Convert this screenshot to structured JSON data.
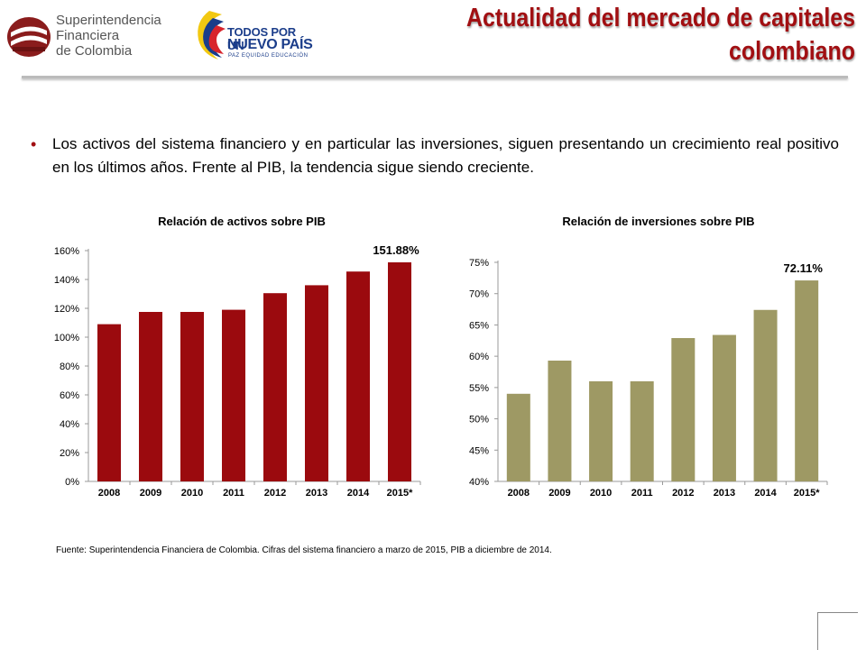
{
  "header": {
    "org_logo": {
      "lines": [
        "Superintendencia",
        "Financiera",
        "de Colombia"
      ],
      "icon": "sfc-logo-icon"
    },
    "gov_logo": {
      "line1": "TODOS POR UN",
      "line2": "NUEVO PAÍS",
      "line3": "PAZ  EQUIDAD  EDUCACIÓN",
      "icon": "colombia-flag-swirl-icon"
    },
    "title_line1": "Actualidad del mercado de capitales",
    "title_line2": "colombiano"
  },
  "body": {
    "paragraph": "Los activos del sistema financiero y en particular las inversiones, siguen presentando un crecimiento real  positivo en los últimos años. Frente al PIB, la tendencia sigue siendo creciente."
  },
  "colors": {
    "title": "#a10f12",
    "bar_assets": "#9b0a0e",
    "bar_investments": "#9e9964",
    "bullet": "#a10f12"
  },
  "chart_data": [
    {
      "type": "bar",
      "title": "Relación de activos sobre PIB",
      "categories": [
        "2008",
        "2009",
        "2010",
        "2011",
        "2012",
        "2013",
        "2014",
        "2015*"
      ],
      "values": [
        109,
        117.5,
        117.5,
        119,
        130.5,
        136,
        145.5,
        151.88
      ],
      "ylim": [
        0,
        160
      ],
      "yticks": [
        "0%",
        "20%",
        "40%",
        "60%",
        "80%",
        "100%",
        "120%",
        "140%",
        "160%"
      ],
      "data_label": {
        "index": 7,
        "text": "151.88%"
      },
      "grid": false,
      "legend": "none"
    },
    {
      "type": "bar",
      "title": "Relación de inversiones sobre PIB",
      "categories": [
        "2008",
        "2009",
        "2010",
        "2011",
        "2012",
        "2013",
        "2014",
        "2015*"
      ],
      "values": [
        54,
        59.3,
        56,
        56,
        62.9,
        63.4,
        67.4,
        72.11
      ],
      "ylim": [
        40,
        75
      ],
      "yticks": [
        "40%",
        "45%",
        "50%",
        "55%",
        "60%",
        "65%",
        "70%",
        "75%"
      ],
      "data_label": {
        "index": 7,
        "text": "72.11%"
      },
      "grid": false,
      "legend": "none"
    }
  ],
  "footer": {
    "source": "Fuente: Superintendencia Financiera de Colombia. Cifras del sistema financiero a marzo de 2015, PIB a diciembre de 2014."
  }
}
